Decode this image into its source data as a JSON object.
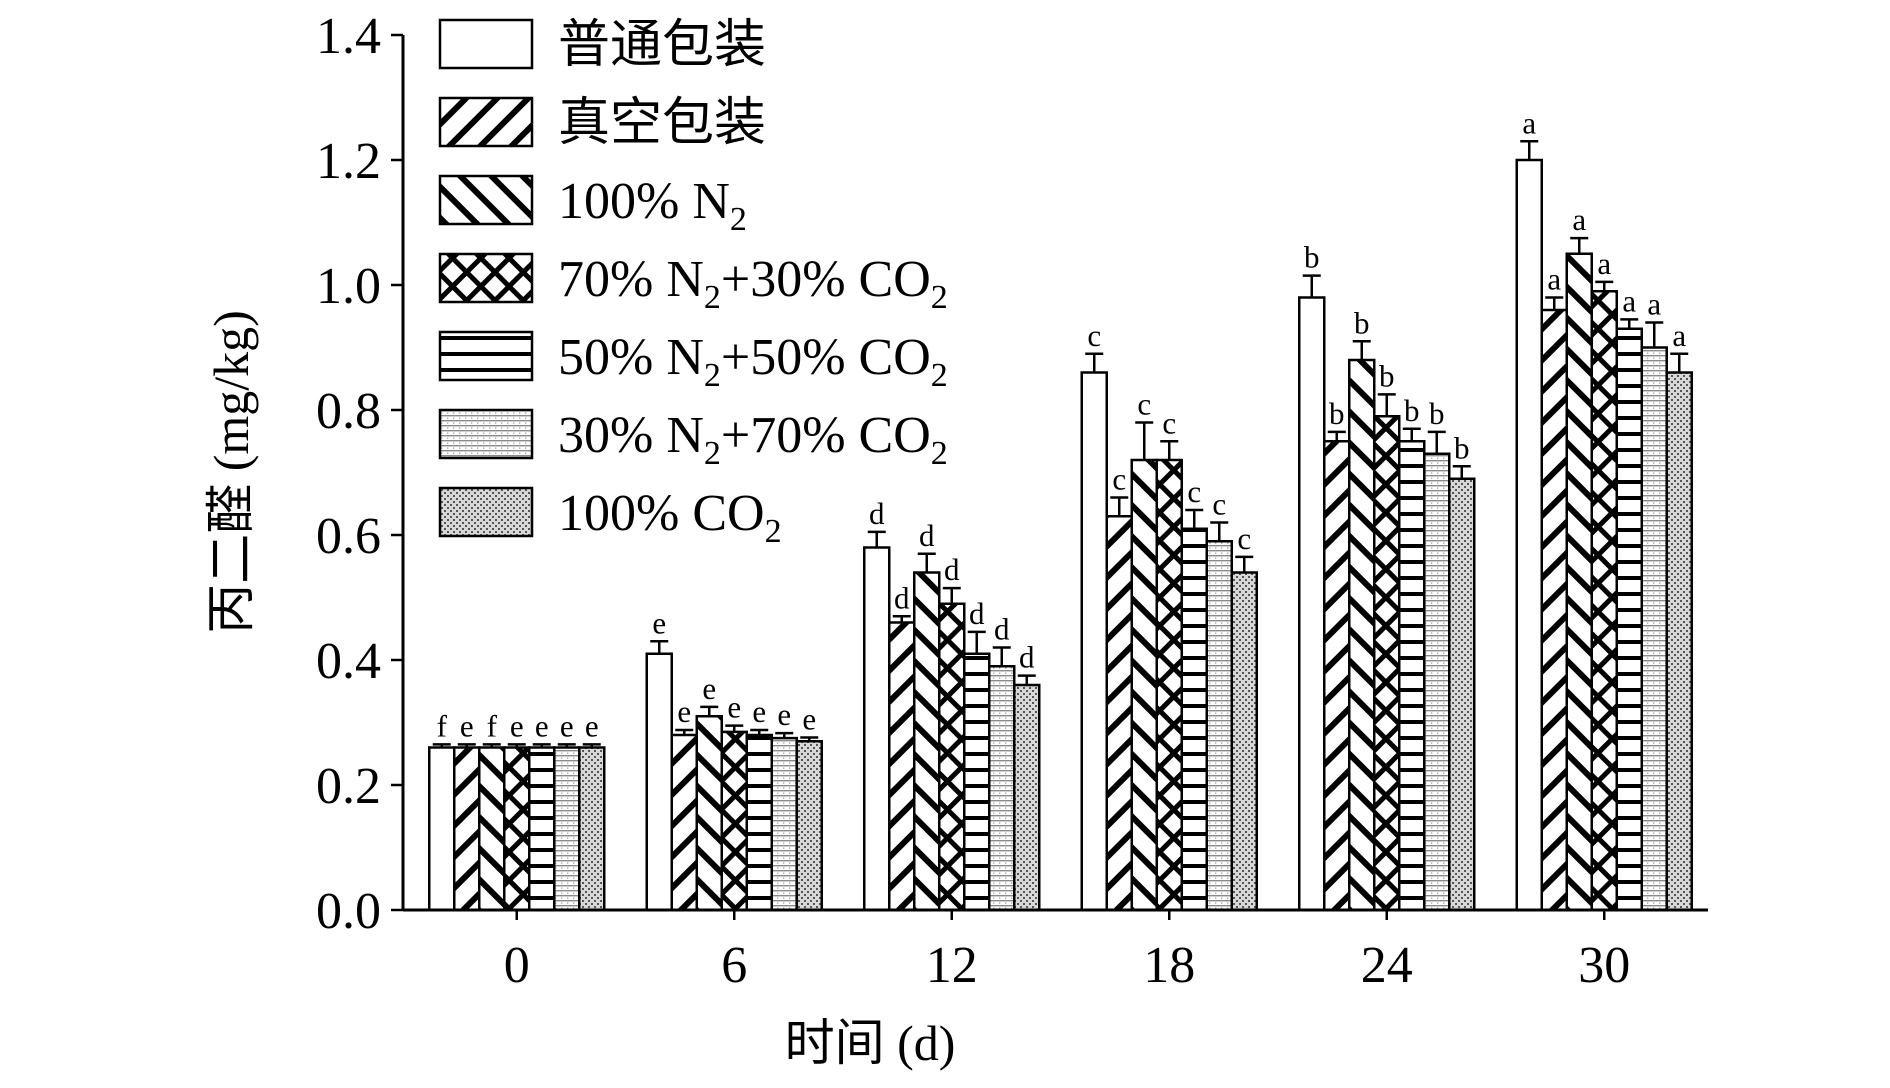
{
  "chart_data": {
    "type": "bar",
    "xlabel": "时间 (d)",
    "ylabel": "丙二醛 (mg/kg)",
    "ylim": [
      0,
      1.4
    ],
    "yticks": [
      "0.0",
      "0.2",
      "0.4",
      "0.6",
      "0.8",
      "1.0",
      "1.2",
      "1.4"
    ],
    "categories": [
      "0",
      "6",
      "12",
      "18",
      "24",
      "30"
    ],
    "legend_position": "top-left",
    "series": [
      {
        "name": "普通包装",
        "legend_parts": [
          {
            "text": "普通包装"
          }
        ],
        "pattern": "blank",
        "values": [
          0.26,
          0.41,
          0.58,
          0.86,
          0.98,
          1.2
        ],
        "errors": [
          0.005,
          0.02,
          0.025,
          0.03,
          0.035,
          0.03
        ],
        "sig": [
          "f",
          "e",
          "d",
          "c",
          "b",
          "a"
        ]
      },
      {
        "name": "真空包装",
        "legend_parts": [
          {
            "text": "真空包装"
          }
        ],
        "pattern": "diagonal-forward",
        "values": [
          0.26,
          0.28,
          0.46,
          0.63,
          0.75,
          0.96
        ],
        "errors": [
          0.005,
          0.008,
          0.01,
          0.03,
          0.015,
          0.02
        ],
        "sig": [
          "e",
          "e",
          "d",
          "c",
          "b",
          "a"
        ]
      },
      {
        "name": "100% N2",
        "legend_parts": [
          {
            "text": "100% N"
          },
          {
            "text": "2",
            "sub": true
          }
        ],
        "pattern": "diagonal-back",
        "values": [
          0.26,
          0.31,
          0.54,
          0.72,
          0.88,
          1.05
        ],
        "errors": [
          0.005,
          0.015,
          0.03,
          0.06,
          0.03,
          0.025
        ],
        "sig": [
          "f",
          "e",
          "d",
          "c",
          "b",
          "a"
        ]
      },
      {
        "name": "70% N2+30% CO2",
        "legend_parts": [
          {
            "text": "70% N"
          },
          {
            "text": "2",
            "sub": true
          },
          {
            "text": "+30% CO"
          },
          {
            "text": "2",
            "sub": true
          }
        ],
        "pattern": "crosshatch",
        "values": [
          0.26,
          0.285,
          0.49,
          0.72,
          0.79,
          0.99
        ],
        "errors": [
          0.005,
          0.01,
          0.025,
          0.03,
          0.035,
          0.015
        ],
        "sig": [
          "e",
          "e",
          "d",
          "c",
          "b",
          "a"
        ]
      },
      {
        "name": "50% N2+50% CO2",
        "legend_parts": [
          {
            "text": "50% N"
          },
          {
            "text": "2",
            "sub": true
          },
          {
            "text": "+50% CO"
          },
          {
            "text": "2",
            "sub": true
          }
        ],
        "pattern": "horizontal",
        "values": [
          0.26,
          0.28,
          0.41,
          0.61,
          0.75,
          0.93
        ],
        "errors": [
          0.005,
          0.008,
          0.035,
          0.03,
          0.02,
          0.015
        ],
        "sig": [
          "e",
          "e",
          "d",
          "c",
          "b",
          "a"
        ]
      },
      {
        "name": "30% N2+70% CO2",
        "legend_parts": [
          {
            "text": "30% N"
          },
          {
            "text": "2",
            "sub": true
          },
          {
            "text": "+70% CO"
          },
          {
            "text": "2",
            "sub": true
          }
        ],
        "pattern": "fine-lines",
        "values": [
          0.26,
          0.275,
          0.39,
          0.59,
          0.73,
          0.9
        ],
        "errors": [
          0.005,
          0.008,
          0.03,
          0.03,
          0.035,
          0.04
        ],
        "sig": [
          "e",
          "e",
          "d",
          "c",
          "b",
          "a"
        ]
      },
      {
        "name": "100% CO2",
        "legend_parts": [
          {
            "text": "100% CO"
          },
          {
            "text": "2",
            "sub": true
          }
        ],
        "pattern": "stipple",
        "values": [
          0.26,
          0.27,
          0.36,
          0.54,
          0.69,
          0.86
        ],
        "errors": [
          0.005,
          0.006,
          0.015,
          0.025,
          0.02,
          0.03
        ],
        "sig": [
          "e",
          "e",
          "d",
          "c",
          "b",
          "a"
        ]
      }
    ]
  }
}
